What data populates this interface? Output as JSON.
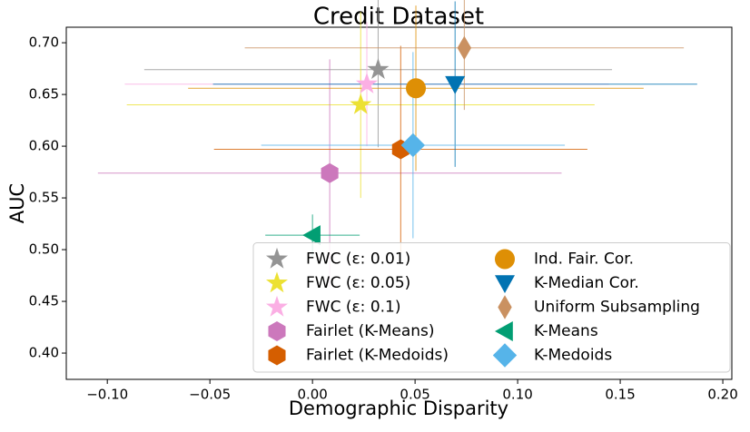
{
  "chart_data": {
    "type": "scatter",
    "title": "Credit Dataset",
    "x_label": "Demographic Disparity",
    "y_label": "AUC",
    "xlim": [
      -0.12,
      0.2044
    ],
    "ylim": [
      0.3746,
      0.715
    ],
    "xticks": [
      {
        "value": -0.1,
        "label": "−0.10"
      },
      {
        "value": -0.05,
        "label": "−0.05"
      },
      {
        "value": 0,
        "label": "0.00"
      },
      {
        "value": 0.05,
        "label": "0.05"
      },
      {
        "value": 0.1,
        "label": "0.10"
      },
      {
        "value": 0.15,
        "label": "0.15"
      },
      {
        "value": 0.2,
        "label": "0.20"
      }
    ],
    "yticks": [
      {
        "value": 0.4,
        "label": "0.40"
      },
      {
        "value": 0.45,
        "label": "0.45"
      },
      {
        "value": 0.5,
        "label": "0.50"
      },
      {
        "value": 0.55,
        "label": "0.55"
      },
      {
        "value": 0.6,
        "label": "0.60"
      },
      {
        "value": 0.65,
        "label": "0.65"
      },
      {
        "value": 0.7,
        "label": "0.70"
      }
    ],
    "legend": "lower right",
    "series": [
      {
        "name": "FWC (ε: 0.01)",
        "color": "#949494",
        "marker": "star",
        "x": [
          0.032
        ],
        "values": [
          0.674
        ],
        "xerr": [
          0.114
        ],
        "yerr": [
          0.075
        ]
      },
      {
        "name": "FWC (ε: 0.05)",
        "color": "#ece133",
        "marker": "star",
        "x": [
          0.0235
        ],
        "values": [
          0.64
        ],
        "xerr": [
          0.114
        ],
        "yerr": [
          0.09
        ]
      },
      {
        "name": "FWC (ε: 0.1)",
        "color": "#fbafe4",
        "marker": "star",
        "x": [
          0.0265
        ],
        "values": [
          0.66
        ],
        "xerr": [
          0.118
        ],
        "yerr": [
          0.06
        ]
      },
      {
        "name": "Fairlet (K-Means)",
        "color": "#cc78bc",
        "marker": "hexagon",
        "x": [
          0.0084
        ],
        "values": [
          0.574
        ],
        "xerr": [
          0.113
        ],
        "yerr": [
          0.11
        ]
      },
      {
        "name": "Fairlet (K-Medoids)",
        "color": "#d55e00",
        "marker": "hexagon",
        "x": [
          0.043
        ],
        "values": [
          0.597
        ],
        "xerr": [
          0.091
        ],
        "yerr": [
          0.1
        ]
      },
      {
        "name": "Ind. Fair. Cor.",
        "color": "#de8f05",
        "marker": "circle",
        "x": [
          0.0504
        ],
        "values": [
          0.656
        ],
        "xerr": [
          0.111
        ],
        "yerr": [
          0.08
        ]
      },
      {
        "name": "K-Median Cor.",
        "color": "#0173b2",
        "marker": "triangle-down",
        "x": [
          0.0695
        ],
        "values": [
          0.66
        ],
        "xerr": [
          0.118
        ],
        "yerr": [
          0.08
        ]
      },
      {
        "name": "Uniform Subsampling",
        "color": "#ca9161",
        "marker": "thin-diamond",
        "x": [
          0.074
        ],
        "values": [
          0.695
        ],
        "xerr": [
          0.107
        ],
        "yerr": [
          0.06
        ]
      },
      {
        "name": "K-Means",
        "color": "#029e73",
        "marker": "triangle-left",
        "x": [
          0.0
        ],
        "values": [
          0.514
        ],
        "xerr": [
          0.023
        ],
        "yerr": [
          0.02
        ]
      },
      {
        "name": "K-Medoids",
        "color": "#56b4e9",
        "marker": "diamond",
        "x": [
          0.049
        ],
        "values": [
          0.601
        ],
        "xerr": [
          0.074
        ],
        "yerr": [
          0.09
        ]
      }
    ]
  }
}
